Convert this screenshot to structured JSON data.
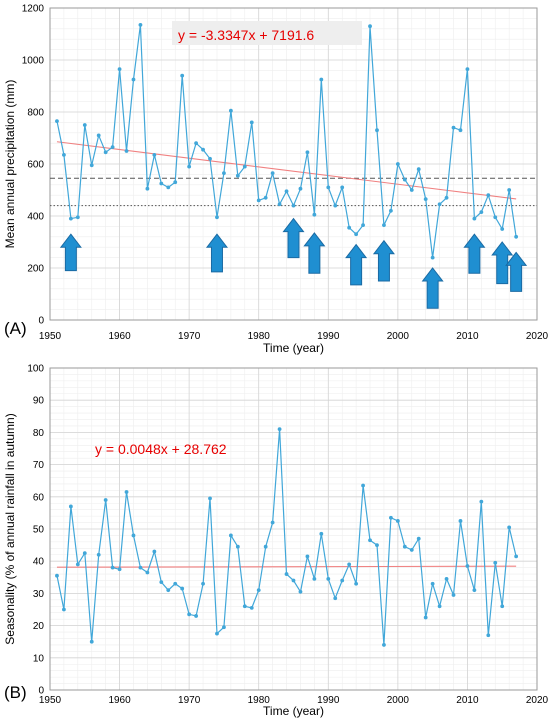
{
  "chart_data": [
    {
      "type": "line",
      "panel_label": "(A)",
      "xlabel": "Time (year)",
      "ylabel": "Mean annual precipitation (mm)",
      "xlim": [
        1950,
        2020
      ],
      "ylim": [
        0,
        1200
      ],
      "xticks": [
        1950,
        1960,
        1970,
        1980,
        1990,
        2000,
        2010,
        2020
      ],
      "yticks": [
        0,
        200,
        400,
        600,
        800,
        1000,
        1200
      ],
      "grid": true,
      "colors": {
        "series": "#41a7d9",
        "trend": "#f08080",
        "arrow": "#1f8fd1",
        "equation": "#e60000"
      },
      "equation": "y = -3.3347x + 7191.6",
      "equation_box": true,
      "trendline": {
        "slope": -3.3347,
        "intercept": 7191.6
      },
      "reference_lines": [
        {
          "y": 545,
          "style": "dashed",
          "color": "#555555"
        },
        {
          "y": 440,
          "style": "dotted",
          "color": "#555555"
        }
      ],
      "arrows": [
        {
          "x": 1953,
          "direction": "up",
          "y_top": 330,
          "y_bottom": 190
        },
        {
          "x": 1974,
          "direction": "up",
          "y_top": 330,
          "y_bottom": 185
        },
        {
          "x": 1985,
          "direction": "up",
          "y_top": 390,
          "y_bottom": 240
        },
        {
          "x": 1988,
          "direction": "up",
          "y_top": 335,
          "y_bottom": 180
        },
        {
          "x": 1994,
          "direction": "up",
          "y_top": 290,
          "y_bottom": 135
        },
        {
          "x": 1998,
          "direction": "up",
          "y_top": 305,
          "y_bottom": 150
        },
        {
          "x": 2005,
          "direction": "up",
          "y_top": 200,
          "y_bottom": 45
        },
        {
          "x": 2011,
          "direction": "up",
          "y_top": 330,
          "y_bottom": 180
        },
        {
          "x": 2015,
          "direction": "up",
          "y_top": 300,
          "y_bottom": 140
        },
        {
          "x": 2017,
          "direction": "up",
          "y_top": 260,
          "y_bottom": 110
        }
      ],
      "series": [
        {
          "x": [
            1951,
            1952,
            1953,
            1954,
            1955,
            1956,
            1957,
            1958,
            1959,
            1960,
            1961,
            1962,
            1963,
            1964,
            1965,
            1966,
            1967,
            1968,
            1969,
            1970,
            1971,
            1972,
            1973,
            1974,
            1975,
            1976,
            1977,
            1978,
            1979,
            1980,
            1981,
            1982,
            1983,
            1984,
            1985,
            1986,
            1987,
            1988,
            1989,
            1990,
            1991,
            1992,
            1993,
            1994,
            1995,
            1996,
            1997,
            1998,
            1999,
            2000,
            2001,
            2002,
            2003,
            2004,
            2005,
            2006,
            2007,
            2008,
            2009,
            2010,
            2011,
            2012,
            2013,
            2014,
            2015,
            2016,
            2017
          ],
          "values": [
            765,
            635,
            390,
            395,
            750,
            595,
            710,
            645,
            665,
            965,
            650,
            925,
            1135,
            505,
            635,
            525,
            510,
            530,
            940,
            590,
            680,
            655,
            620,
            395,
            565,
            805,
            555,
            590,
            760,
            460,
            470,
            565,
            445,
            495,
            440,
            505,
            645,
            405,
            925,
            510,
            440,
            510,
            355,
            330,
            365,
            1130,
            730,
            365,
            420,
            600,
            540,
            500,
            580,
            465,
            240,
            445,
            470,
            740,
            730,
            965,
            390,
            415,
            480,
            395,
            350,
            500,
            320
          ]
        }
      ]
    },
    {
      "type": "line",
      "panel_label": "(B)",
      "xlabel": "Time (year)",
      "ylabel": "Seasonality (% of annual rainfall in autumn)",
      "xlim": [
        1950,
        2020
      ],
      "ylim": [
        0,
        100
      ],
      "xticks": [
        1950,
        1960,
        1970,
        1980,
        1990,
        2000,
        2010,
        2020
      ],
      "yticks": [
        0,
        10,
        20,
        30,
        40,
        50,
        60,
        70,
        80,
        90,
        100
      ],
      "grid": true,
      "colors": {
        "series": "#41a7d9",
        "trend": "#f08080",
        "equation": "#e60000"
      },
      "equation": "y = 0.0048x + 28.762",
      "equation_box": false,
      "trendline": {
        "slope": 0.0048,
        "intercept": 28.762
      },
      "series": [
        {
          "x": [
            1951,
            1952,
            1953,
            1954,
            1955,
            1956,
            1957,
            1958,
            1959,
            1960,
            1961,
            1962,
            1963,
            1964,
            1965,
            1966,
            1967,
            1968,
            1969,
            1970,
            1971,
            1972,
            1973,
            1974,
            1975,
            1976,
            1977,
            1978,
            1979,
            1980,
            1981,
            1982,
            1983,
            1984,
            1985,
            1986,
            1987,
            1988,
            1989,
            1990,
            1991,
            1992,
            1993,
            1994,
            1995,
            1996,
            1997,
            1998,
            1999,
            2000,
            2001,
            2002,
            2003,
            2004,
            2005,
            2006,
            2007,
            2008,
            2009,
            2010,
            2011,
            2012,
            2013,
            2014,
            2015,
            2016,
            2017
          ],
          "values": [
            35.5,
            25,
            57,
            39,
            42.5,
            15,
            42,
            59,
            38,
            37.5,
            61.5,
            48,
            38,
            36.5,
            43,
            33.5,
            31,
            33,
            31.5,
            23.5,
            23,
            33,
            59.5,
            17.5,
            19.5,
            48,
            44.5,
            26,
            25.5,
            31,
            44.5,
            52,
            81,
            36,
            34,
            30.5,
            41.5,
            34.5,
            48.5,
            34.5,
            28.5,
            34,
            39,
            33,
            63.5,
            46.5,
            45,
            14,
            53.5,
            52.5,
            44.5,
            43.5,
            47,
            22.5,
            33,
            26,
            34.5,
            29.5,
            52.5,
            38.5,
            31,
            58.5,
            17,
            39.5,
            26,
            50.5,
            41.5
          ]
        }
      ]
    }
  ]
}
